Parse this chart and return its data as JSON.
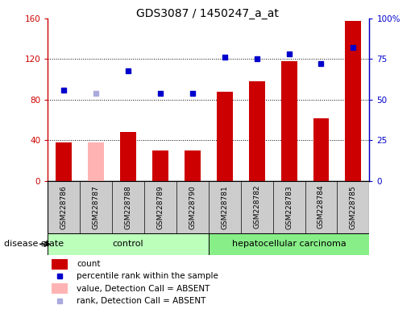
{
  "title": "GDS3087 / 1450247_a_at",
  "samples": [
    "GSM228786",
    "GSM228787",
    "GSM228788",
    "GSM228789",
    "GSM228790",
    "GSM228781",
    "GSM228782",
    "GSM228783",
    "GSM228784",
    "GSM228785"
  ],
  "count_values": [
    38,
    38,
    48,
    30,
    30,
    88,
    98,
    118,
    62,
    158
  ],
  "count_absent": [
    false,
    true,
    false,
    false,
    false,
    false,
    false,
    false,
    false,
    false
  ],
  "rank_values": [
    56,
    54,
    68,
    54,
    54,
    76,
    75,
    78,
    72,
    82
  ],
  "rank_absent": [
    false,
    true,
    false,
    false,
    false,
    false,
    false,
    false,
    false,
    false
  ],
  "count_color": "#cc0000",
  "count_absent_color": "#ffb3b3",
  "rank_color": "#0000cc",
  "rank_absent_color": "#aaaadd",
  "ylim_left": [
    0,
    160
  ],
  "ylim_right": [
    0,
    100
  ],
  "yticks_left": [
    0,
    40,
    80,
    120,
    160
  ],
  "ytick_labels_left": [
    "0",
    "40",
    "80",
    "120",
    "160"
  ],
  "yticks_right": [
    0,
    25,
    50,
    75,
    100
  ],
  "ytick_labels_right": [
    "0",
    "25",
    "50",
    "75",
    "100%"
  ],
  "groups": [
    {
      "label": "control",
      "color": "#bbffbb",
      "start": 0,
      "end": 5
    },
    {
      "label": "hepatocellular carcinoma",
      "color": "#88ee88",
      "start": 5,
      "end": 10
    }
  ],
  "group_label": "disease state",
  "bg_color": "#cccccc",
  "plot_bg": "#ffffff",
  "bar_width": 0.5,
  "marker_size": 5,
  "dotted_lines": [
    40,
    80,
    120
  ],
  "legend_items": [
    {
      "label": "count",
      "type": "bar",
      "color": "#cc0000"
    },
    {
      "label": "percentile rank within the sample",
      "type": "square",
      "color": "#0000cc"
    },
    {
      "label": "value, Detection Call = ABSENT",
      "type": "bar",
      "color": "#ffb3b3"
    },
    {
      "label": "rank, Detection Call = ABSENT",
      "type": "square",
      "color": "#aaaadd"
    }
  ]
}
